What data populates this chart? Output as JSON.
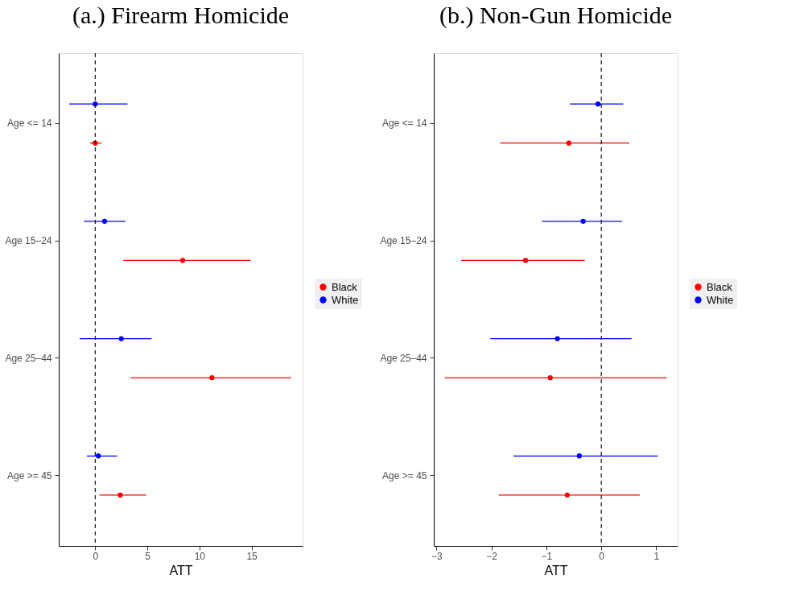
{
  "chart_data": [
    {
      "type": "scatter",
      "title": "(a.) Firearm Homicide",
      "xlabel": "ATT",
      "orientation": "horizontal",
      "categories": [
        "Age <= 14",
        "Age 15–24",
        "Age 25–44",
        "Age >= 45"
      ],
      "series": [
        {
          "name": "Black",
          "color": "#ff0000",
          "values": [
            0.0,
            8.4,
            11.2,
            2.4
          ],
          "errors": [
            [
              -0.5,
              0.6
            ],
            [
              2.7,
              14.9
            ],
            [
              3.4,
              18.8
            ],
            [
              0.4,
              4.9
            ]
          ]
        },
        {
          "name": "White",
          "color": "#0000ff",
          "values": [
            0.0,
            0.9,
            2.5,
            0.3
          ],
          "errors": [
            [
              -2.5,
              3.1
            ],
            [
              -1.1,
              2.9
            ],
            [
              -1.5,
              5.4
            ],
            [
              -0.8,
              2.1
            ]
          ]
        }
      ],
      "xlim": [
        -3.5,
        19.9
      ],
      "xticks": [
        0,
        5,
        10,
        15
      ],
      "ref_lines": [
        {
          "axis": "x",
          "value": 0,
          "line_style": "dashed"
        }
      ],
      "legend": "right",
      "grid": false,
      "marker": "circle"
    },
    {
      "type": "scatter",
      "title": "(b.) Non-Gun Homicide",
      "xlabel": "ATT",
      "orientation": "horizontal",
      "categories": [
        "Age <= 14",
        "Age 15–24",
        "Age 25–44",
        "Age >= 45"
      ],
      "series": [
        {
          "name": "Black",
          "color": "#ff0000",
          "values": [
            -0.59,
            -1.38,
            -0.93,
            -0.62
          ],
          "errors": [
            [
              -1.84,
              0.51
            ],
            [
              -2.55,
              -0.3
            ],
            [
              -2.85,
              1.19
            ],
            [
              -1.87,
              0.7
            ]
          ]
        },
        {
          "name": "White",
          "color": "#0000ff",
          "values": [
            -0.06,
            -0.33,
            -0.8,
            -0.4
          ],
          "errors": [
            [
              -0.57,
              0.4
            ],
            [
              -1.08,
              0.38
            ],
            [
              -2.02,
              0.55
            ],
            [
              -1.6,
              1.03
            ]
          ]
        }
      ],
      "xlim": [
        -3.05,
        1.39
      ],
      "xticks": [
        {
          "value": -3,
          "label": "−3"
        },
        {
          "value": -2,
          "label": "−2"
        },
        {
          "value": -1,
          "label": "−1"
        },
        0,
        1
      ],
      "ref_lines": [
        {
          "axis": "x",
          "value": 0,
          "line_style": "dashed"
        }
      ],
      "legend": "right",
      "grid": false,
      "marker": "circle"
    }
  ]
}
